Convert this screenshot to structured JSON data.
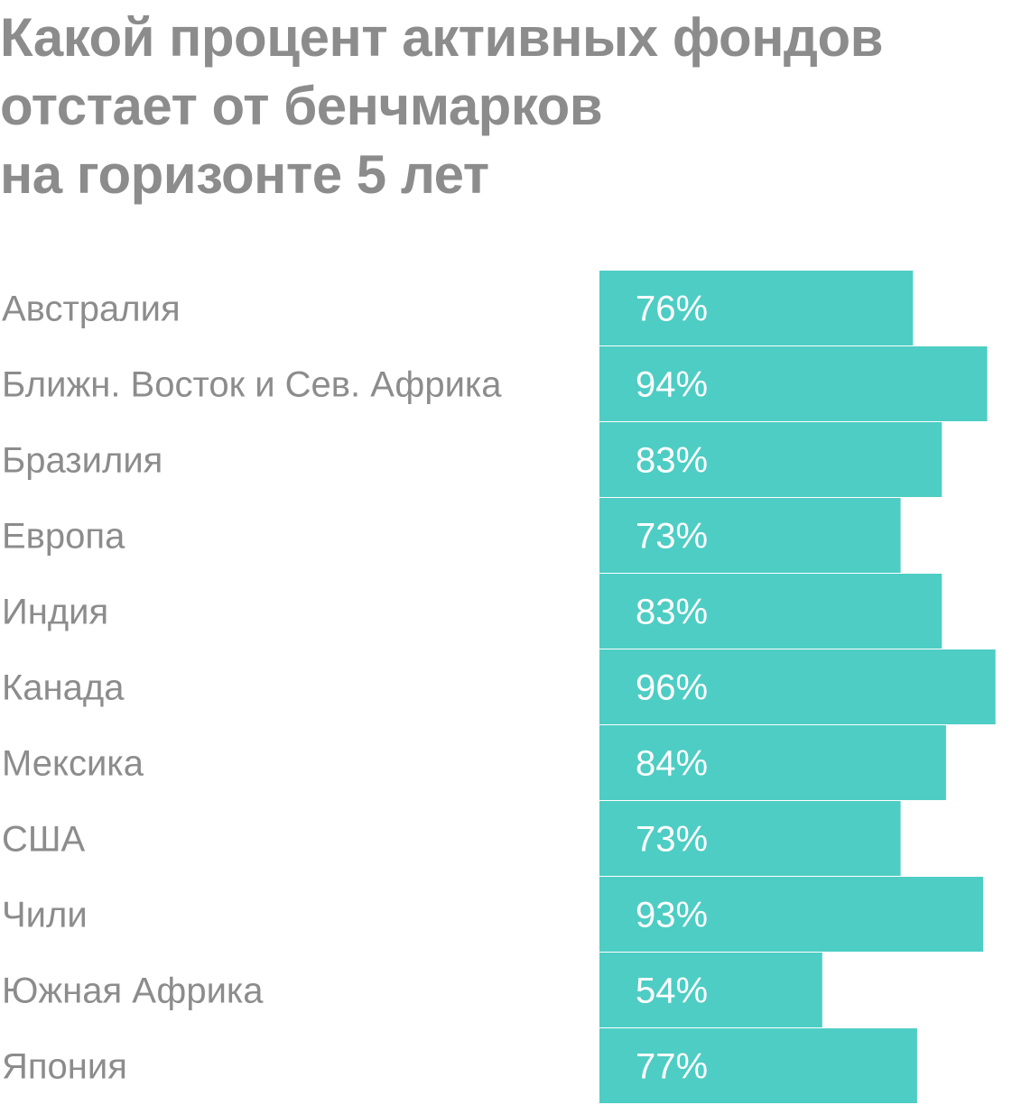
{
  "chart_data": {
    "type": "bar",
    "orientation": "horizontal",
    "title_lines": [
      "Какой процент активных фондов",
      "отстает от бенчмарков",
      "на горизонте 5 лет"
    ],
    "categories": [
      "Австралия",
      "Ближн. Восток и Сев. Африка",
      "Бразилия",
      "Европа",
      "Индия",
      "Канада",
      "Мексика",
      "США",
      "Чили",
      "Южная Африка",
      "Япония"
    ],
    "values": [
      76,
      94,
      83,
      73,
      83,
      96,
      84,
      73,
      93,
      54,
      77
    ],
    "value_labels": [
      "76%",
      "94%",
      "83%",
      "73%",
      "83%",
      "96%",
      "84%",
      "73%",
      "93%",
      "54%",
      "77%"
    ],
    "unit": "%",
    "xlim": [
      0,
      100
    ],
    "grid": false,
    "legend": "none",
    "colors": {
      "bar": "#4ecdc4",
      "title": "#8c8c8c",
      "category_label": "#8c8c8c",
      "value_label": "#ffffff"
    }
  }
}
